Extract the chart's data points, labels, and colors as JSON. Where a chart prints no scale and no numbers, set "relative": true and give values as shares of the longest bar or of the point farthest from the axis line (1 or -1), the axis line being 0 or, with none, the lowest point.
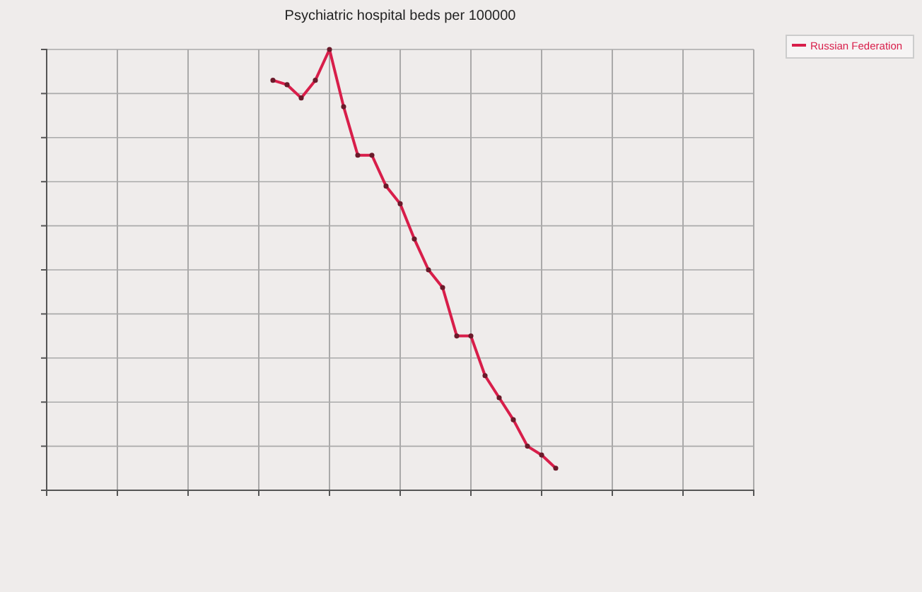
{
  "chart_data": {
    "type": "line",
    "title": "Psychiatric hospital beds per 100000",
    "relative": true,
    "categories": [
      null,
      null,
      null,
      null,
      null,
      null,
      null,
      null,
      null,
      null,
      null,
      null,
      null,
      null,
      null,
      null,
      null,
      null,
      null,
      null,
      null,
      null,
      null,
      null,
      null,
      null,
      null,
      null,
      null,
      null,
      null,
      null,
      null,
      null,
      null,
      null,
      null,
      null,
      null,
      null,
      null,
      null,
      null,
      null,
      null,
      null,
      null,
      null,
      null,
      null,
      null
    ],
    "series": [
      {
        "name": "Russian Federation",
        "color": "#d81e4a",
        "values": [
          null,
          null,
          null,
          null,
          null,
          null,
          null,
          null,
          null,
          null,
          null,
          null,
          null,
          null,
          null,
          null,
          0.93,
          0.92,
          0.89,
          0.93,
          1,
          0.87,
          0.76,
          0.76,
          0.69,
          0.65,
          0.57,
          0.5,
          0.46,
          0.35,
          0.35,
          0.26,
          0.21,
          0.16,
          0.1,
          0.08,
          0.05,
          null,
          null,
          null,
          null,
          null,
          null,
          null,
          null,
          null,
          null,
          null,
          null,
          null,
          null
        ]
      }
    ],
    "grid": true,
    "legend": "top right",
    "marker": "circle",
    "line_style": "solid"
  }
}
